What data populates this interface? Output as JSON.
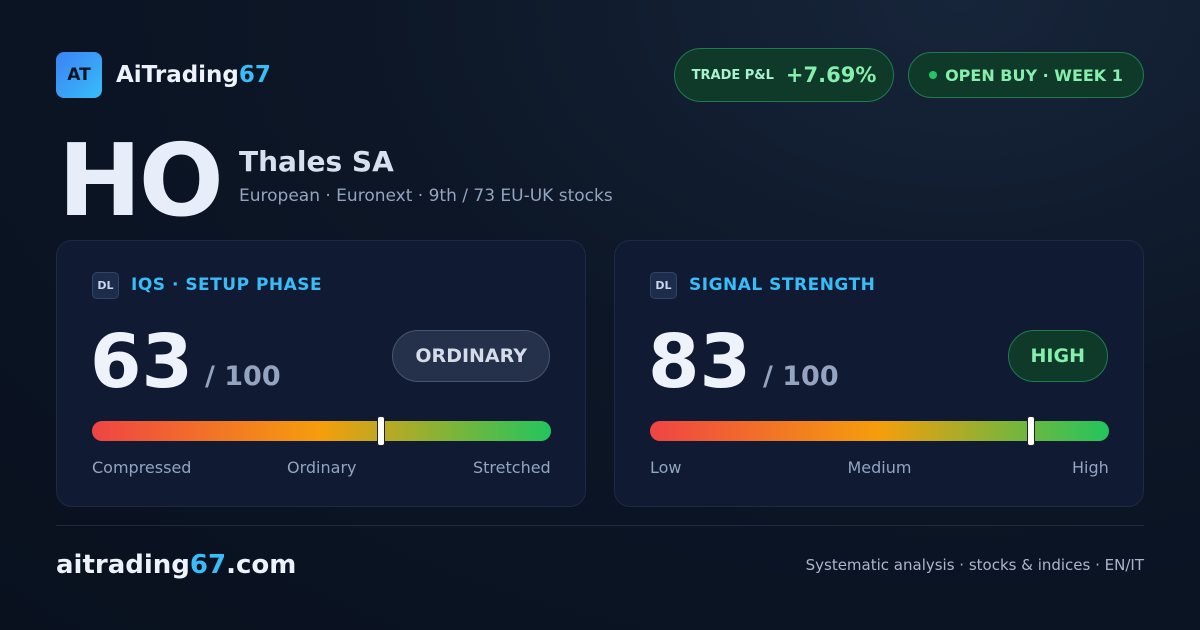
{
  "header": {
    "logo": "AT",
    "brand_main": "AiTrading",
    "brand_accent": "67",
    "pnl_label": "TRADE P&L",
    "pnl_value": "+7.69%",
    "status": "OPEN BUY · WEEK 1"
  },
  "stock": {
    "ticker": "HO",
    "name": "Thales SA",
    "subtitle": "European · Euronext · 9th / 73 EU-UK stocks"
  },
  "cards": [
    {
      "icon": "DL",
      "title": "IQS · SETUP PHASE",
      "score": 63,
      "max": {
        "value": 100,
        "label": "/ 100"
      },
      "badge": "ORDINARY",
      "scale_labels": [
        "Compressed",
        "Ordinary",
        "Stretched"
      ]
    },
    {
      "icon": "DL",
      "title": "SIGNAL STRENGTH",
      "score": 83,
      "max": {
        "value": 100,
        "label": "/ 100"
      },
      "badge": "HIGH",
      "scale_labels": [
        "Low",
        "Medium",
        "High"
      ]
    }
  ],
  "footer": {
    "domain_main": "aitrading",
    "domain_accent": "67",
    "domain_tld": ".com",
    "tagline": "Systematic analysis · stocks & indices · EN/IT"
  }
}
